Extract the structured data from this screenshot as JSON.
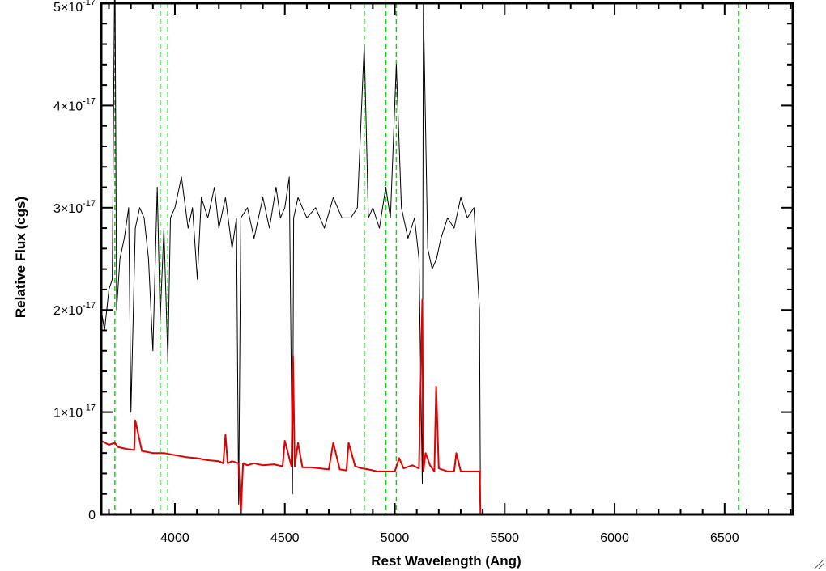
{
  "chart_data": {
    "type": "line",
    "title": "",
    "xlabel": "Rest Wavelength (Ang)",
    "ylabel": "Relative Flux (cgs)",
    "xlim": [
      3665,
      6810
    ],
    "ylim": [
      0,
      5e-17
    ],
    "xticks": [
      4000,
      4500,
      5000,
      5500,
      6000,
      6500
    ],
    "xtick_labels": [
      "4000",
      "4500",
      "5000",
      "5500",
      "6000",
      "6500"
    ],
    "yticks": [
      0,
      1e-17,
      2e-17,
      3e-17,
      4e-17,
      5e-17
    ],
    "ytick_labels": [
      {
        "base": "0",
        "exp": ""
      },
      {
        "base": "1×10",
        "exp": "-17"
      },
      {
        "base": "2×10",
        "exp": "-17"
      },
      {
        "base": "3×10",
        "exp": "-17"
      },
      {
        "base": "4×10",
        "exp": "-17"
      },
      {
        "base": "5×10",
        "exp": "-17"
      }
    ],
    "grid": false,
    "legend": "none",
    "series": [
      {
        "color": "#000000",
        "style": "spectrum",
        "x": [
          3665,
          3680,
          3700,
          3715,
          3727,
          3735,
          3750,
          3770,
          3790,
          3800,
          3820,
          3840,
          3860,
          3880,
          3900,
          3920,
          3933,
          3950,
          3968,
          3980,
          4000,
          4030,
          4060,
          4080,
          4102,
          4120,
          4150,
          4180,
          4200,
          4230,
          4260,
          4280,
          4290,
          4300,
          4330,
          4360,
          4400,
          4430,
          4460,
          4480,
          4500,
          4520,
          4535,
          4540,
          4560,
          4600,
          4640,
          4680,
          4720,
          4760,
          4800,
          4830,
          4861,
          4880,
          4900,
          4930,
          4959,
          4980,
          5007,
          5030,
          5060,
          5090,
          5110,
          5125,
          5130,
          5150,
          5170,
          5190,
          5210,
          5240,
          5270,
          5300,
          5330,
          5360,
          5380,
          5385,
          5390
        ],
        "y": [
          2e-17,
          1.8e-17,
          2.2e-17,
          2.3e-17,
          5.5e-17,
          2e-17,
          2.5e-17,
          2.7e-17,
          3e-17,
          1e-17,
          2.8e-17,
          3e-17,
          2.9e-17,
          2.5e-17,
          1.6e-17,
          3.2e-17,
          1.9e-17,
          2.8e-17,
          1.5e-17,
          2.9e-17,
          3e-17,
          3.3e-17,
          2.8e-17,
          3e-17,
          2.3e-17,
          3.1e-17,
          2.9e-17,
          3.2e-17,
          2.8e-17,
          3.1e-17,
          2.6e-17,
          2.9e-17,
          1e-18,
          2.9e-17,
          3e-17,
          2.7e-17,
          3.1e-17,
          2.8e-17,
          3.2e-17,
          2.9e-17,
          3e-17,
          3.3e-17,
          2e-18,
          2.9e-17,
          3.1e-17,
          2.9e-17,
          3e-17,
          2.8e-17,
          3.1e-17,
          2.9e-17,
          2.9e-17,
          3e-17,
          4.6e-17,
          2.9e-17,
          3e-17,
          2.8e-17,
          3.2e-17,
          2.9e-17,
          4.4e-17,
          3e-17,
          2.7e-17,
          2.9e-17,
          2.5e-17,
          3e-18,
          5e-17,
          2.6e-17,
          2.4e-17,
          2.5e-17,
          2.7e-17,
          2.9e-17,
          2.8e-17,
          3.1e-17,
          2.9e-17,
          3e-17,
          2.2e-17,
          2e-17,
          0.0
        ]
      },
      {
        "color": "#e00000",
        "style": "error",
        "x": [
          3665,
          3700,
          3727,
          3740,
          3780,
          3815,
          3820,
          3850,
          3900,
          3950,
          4000,
          4050,
          4100,
          4150,
          4200,
          4220,
          4230,
          4240,
          4260,
          4290,
          4300,
          4310,
          4330,
          4360,
          4400,
          4450,
          4490,
          4500,
          4530,
          4537,
          4545,
          4560,
          4580,
          4620,
          4660,
          4700,
          4720,
          4750,
          4780,
          4790,
          4820,
          4850,
          4880,
          4920,
          4960,
          5000,
          5020,
          5040,
          5080,
          5110,
          5125,
          5130,
          5140,
          5160,
          5180,
          5188,
          5200,
          5240,
          5270,
          5280,
          5300,
          5340,
          5385,
          5390,
          5400,
          6810
        ],
        "y": [
          7.2e-18,
          6.8e-18,
          7e-18,
          6.6e-18,
          6.4e-18,
          6.3e-18,
          9.2e-18,
          6.2e-18,
          6e-18,
          6e-18,
          5.8e-18,
          5.6e-18,
          5.5e-18,
          5.3e-18,
          5.2e-18,
          5e-18,
          7.8e-18,
          5e-18,
          5.2e-18,
          5e-18,
          0.0,
          5e-18,
          4.8e-18,
          5e-18,
          4.8e-18,
          4.9e-18,
          4.7e-18,
          7.2e-18,
          4.7e-18,
          1.55e-17,
          4.7e-18,
          7e-18,
          4.6e-18,
          4.6e-18,
          4.5e-18,
          4.4e-18,
          7e-18,
          4.4e-18,
          4.3e-18,
          7e-18,
          4.7e-18,
          4.5e-18,
          4.4e-18,
          4.2e-18,
          4.2e-18,
          4.2e-18,
          5.5e-18,
          4.5e-18,
          4.8e-18,
          4.5e-18,
          2.1e-17,
          4.2e-18,
          6e-18,
          4.8e-18,
          4.2e-18,
          1.25e-17,
          4.5e-18,
          4.2e-18,
          4.2e-18,
          6e-18,
          4.2e-18,
          4.2e-18,
          4.2e-18,
          0.0,
          0.0,
          0.0
        ]
      }
    ],
    "vlines": {
      "color": "#00dd00",
      "style": "dashed",
      "x": [
        3727,
        3933,
        3968,
        4861,
        4959,
        5007,
        6563
      ]
    }
  }
}
